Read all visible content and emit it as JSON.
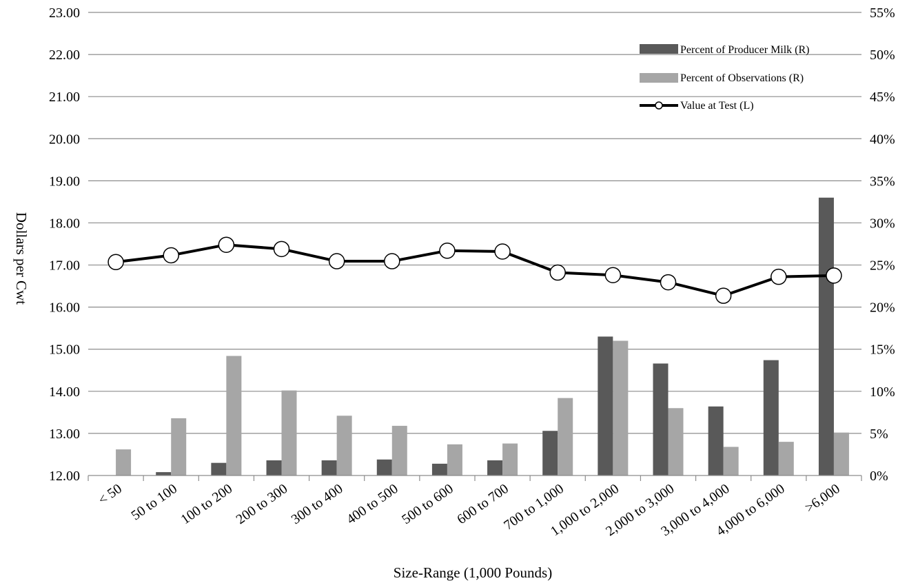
{
  "chart_data": {
    "type": "bar",
    "xlabel": "Size-Range (1,000 Pounds)",
    "ylabel": "Dollars per Cwt",
    "categories": [
      "< 50",
      "50 to 100",
      "100 to 200",
      "200 to 300",
      "300 to 400",
      "400 to 500",
      "500 to 600",
      "600 to 700",
      "700 to 1,000",
      "1,000 to 2,000",
      "2,000 to 3,000",
      "3,000 to 4,000",
      "4,000 to 6,000",
      ">6,000"
    ],
    "ylim": [
      12,
      23
    ],
    "y2lim": [
      0,
      55
    ],
    "y_ticks": [
      "12.00",
      "13.00",
      "14.00",
      "15.00",
      "16.00",
      "17.00",
      "18.00",
      "19.00",
      "20.00",
      "21.00",
      "22.00",
      "23.00"
    ],
    "y2_ticks": [
      "0%",
      "5%",
      "10%",
      "15%",
      "20%",
      "25%",
      "30%",
      "35%",
      "40%",
      "45%",
      "50%",
      "55%"
    ],
    "series": [
      {
        "name": "Percent of Producer Milk (R)",
        "type": "bar",
        "axis": "right",
        "color": "#595959",
        "values": [
          0.0,
          0.4,
          1.5,
          1.8,
          1.8,
          1.9,
          1.4,
          1.8,
          5.3,
          16.5,
          13.3,
          8.2,
          13.7,
          33.0
        ]
      },
      {
        "name": "Percent of Observations (R)",
        "type": "bar",
        "axis": "right",
        "color": "#a6a6a6",
        "values": [
          3.1,
          6.8,
          14.2,
          10.1,
          7.1,
          5.9,
          3.7,
          3.8,
          9.2,
          16.0,
          8.0,
          3.4,
          4.0,
          5.1
        ]
      },
      {
        "name": "Value at Test (L)",
        "type": "line",
        "axis": "left",
        "color": "#000000",
        "values": [
          17.07,
          17.23,
          17.48,
          17.38,
          17.09,
          17.09,
          17.34,
          17.32,
          16.82,
          16.76,
          16.59,
          16.27,
          16.72,
          16.75
        ]
      }
    ],
    "grid": true,
    "legend_position": "top-right"
  }
}
